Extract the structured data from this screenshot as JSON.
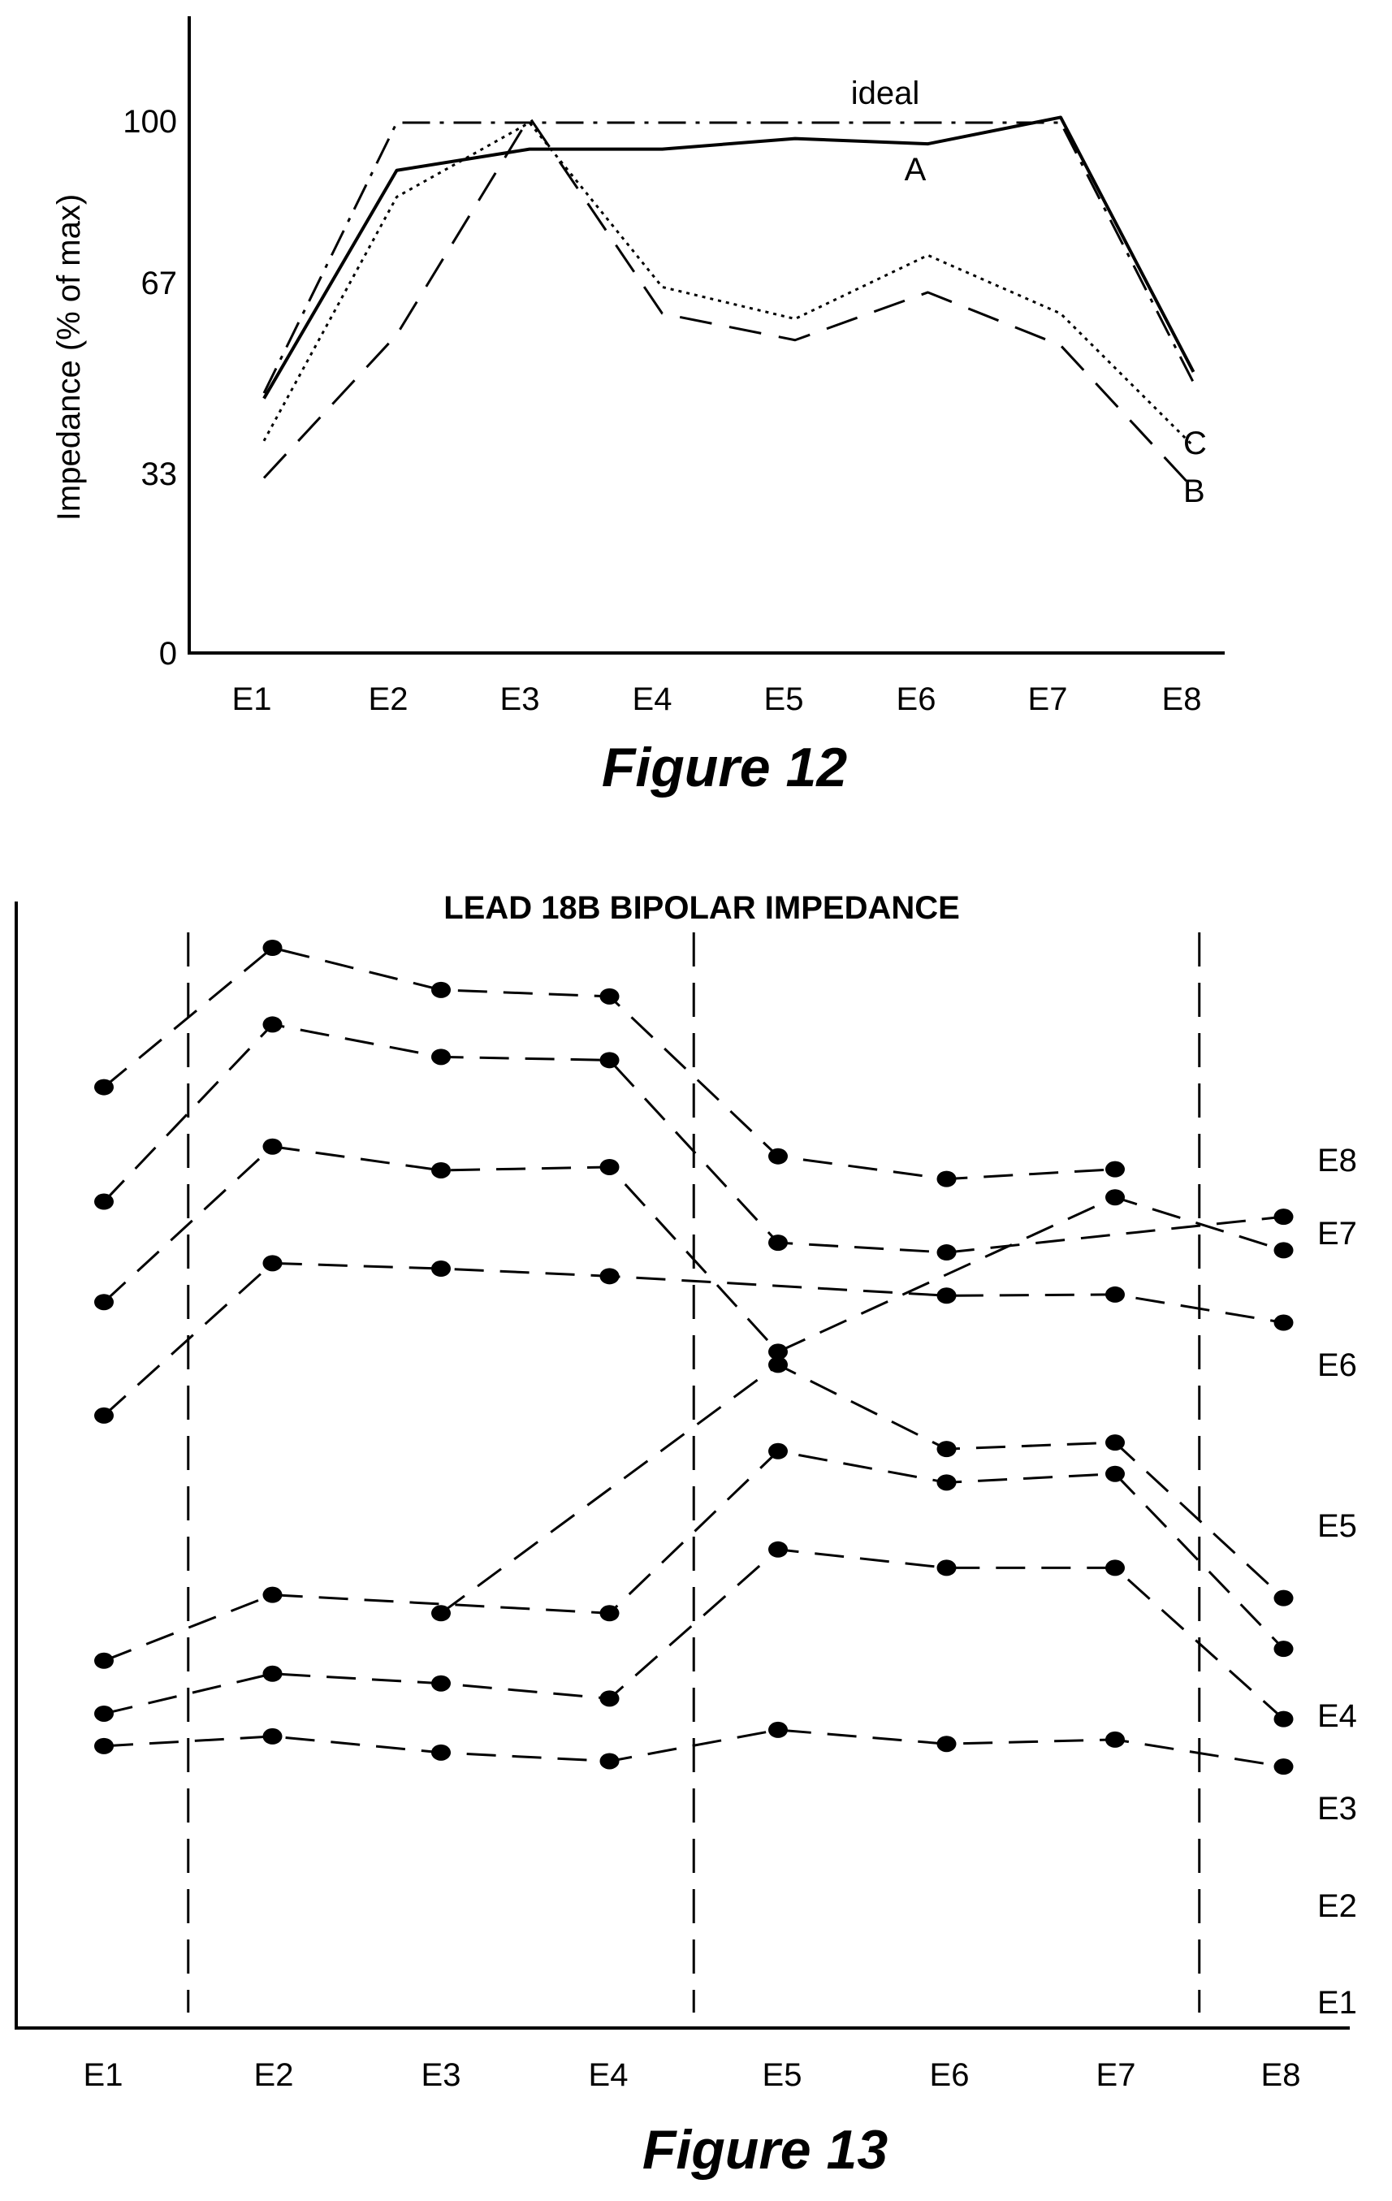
{
  "figure12": {
    "caption": "Figure 12",
    "ylabel": "Impedance (% of max)",
    "yticks": [
      "0",
      "33",
      "67",
      "100"
    ],
    "xticks": [
      "E1",
      "E2",
      "E3",
      "E4",
      "E5",
      "E6",
      "E7",
      "E8"
    ]
  },
  "figure13": {
    "caption": "Figure 13",
    "title": "LEAD 18B BIPOLAR IMPEDANCE",
    "xticks": [
      "E1",
      "E2",
      "E3",
      "E4",
      "E5",
      "E6",
      "E7",
      "E8"
    ]
  },
  "chart_data": [
    {
      "type": "line",
      "title": "",
      "xlabel": "",
      "ylabel": "Impedance (% of max)",
      "categories": [
        "E1",
        "E2",
        "E3",
        "E4",
        "E5",
        "E6",
        "E7",
        "E8"
      ],
      "ylim": [
        0,
        120
      ],
      "yticks": [
        0,
        33,
        67,
        100
      ],
      "grid": false,
      "series": [
        {
          "name": "ideal",
          "style": "dash-dot",
          "x": [
            1,
            2,
            3,
            4,
            5,
            6,
            7,
            8
          ],
          "values": [
            49,
            100,
            100,
            100,
            100,
            100,
            100,
            51
          ]
        },
        {
          "name": "A",
          "style": "solid",
          "x": [
            1,
            2,
            3,
            4,
            5,
            6,
            7,
            8
          ],
          "values": [
            48,
            91,
            95,
            95,
            97,
            96,
            101,
            53
          ]
        },
        {
          "name": "B",
          "style": "dashed",
          "x": [
            1,
            2,
            3,
            4,
            5,
            6,
            7,
            8
          ],
          "values": [
            33,
            60,
            101,
            64,
            59,
            68,
            58,
            31
          ]
        },
        {
          "name": "C",
          "style": "dotted",
          "x": [
            1,
            2,
            3,
            4,
            5,
            6,
            7,
            8
          ],
          "values": [
            40,
            86,
            100,
            69,
            63,
            75,
            64,
            39
          ]
        }
      ]
    },
    {
      "type": "line",
      "title": "LEAD 18B BIPOLAR IMPEDANCE",
      "xlabel": "",
      "ylabel": "",
      "categories": [
        "E1",
        "E2",
        "E3",
        "E4",
        "E5",
        "E6",
        "E7",
        "E8"
      ],
      "ylim": [
        0,
        100
      ],
      "grid": false,
      "vertical_dashed_lines_at": [
        1.5,
        4.5,
        7.5
      ],
      "series": [
        {
          "name": "E8",
          "x": [
            1,
            2,
            3,
            4,
            5,
            6,
            7
          ],
          "values": [
            87.1,
            100,
            96.1,
            95.5,
            80.7,
            78.6,
            79.5
          ]
        },
        {
          "name": "E7",
          "x": [
            1,
            2,
            3,
            4,
            5,
            6,
            8
          ],
          "values": [
            76.5,
            92.9,
            89.9,
            89.6,
            72.7,
            71.8,
            75.1
          ]
        },
        {
          "name": "E6",
          "x": [
            1,
            2,
            3,
            4,
            5,
            7,
            8
          ],
          "values": [
            67.2,
            81.6,
            79.4,
            79.7,
            62.6,
            76.9,
            72.0
          ]
        },
        {
          "name": "E5",
          "x": [
            1,
            2,
            3,
            4,
            6,
            7,
            8
          ],
          "values": [
            56.7,
            70.8,
            70.3,
            69.6,
            67.8,
            67.9,
            65.3
          ]
        },
        {
          "name": "E4",
          "x": [
            3,
            5,
            6,
            7,
            8
          ],
          "values": [
            38.4,
            61.4,
            53.6,
            54.2,
            39.8
          ]
        },
        {
          "name": "E3",
          "x": [
            1,
            2,
            4,
            5,
            6,
            7,
            8
          ],
          "values": [
            34.0,
            40.1,
            38.4,
            53.4,
            50.5,
            51.3,
            35.1
          ]
        },
        {
          "name": "E2",
          "x": [
            1,
            2,
            3,
            4,
            5,
            6,
            7,
            8
          ],
          "values": [
            29.1,
            32.8,
            31.9,
            30.5,
            44.3,
            42.6,
            42.6,
            28.6
          ]
        },
        {
          "name": "E1",
          "x": [
            1,
            2,
            3,
            4,
            5,
            6,
            7,
            8
          ],
          "values": [
            26.1,
            27.0,
            25.5,
            24.7,
            27.6,
            26.3,
            26.7,
            24.2
          ]
        }
      ]
    }
  ]
}
